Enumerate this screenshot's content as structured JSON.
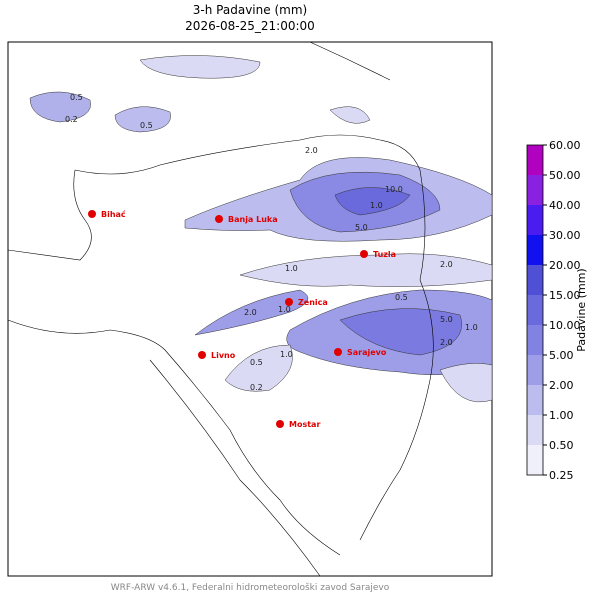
{
  "header": {
    "title": "3-h Padavine (mm)",
    "subtitle": "2026-08-25_21:00:00"
  },
  "map": {
    "cities": [
      "Bihać",
      "Banja Luka",
      "Tuzla",
      "Zenica",
      "Livno",
      "Sarajevo",
      "Mostar"
    ],
    "contour_labels": [
      "0.5",
      "0.2",
      "0.5",
      "2.0",
      "1.0",
      "10.0",
      "5.0",
      "1.0",
      "2.0",
      "0.5",
      "2.0",
      "1.0",
      "5.0",
      "2.0",
      "1.0",
      "0.5",
      "1.0",
      "0.2"
    ]
  },
  "colorbar": {
    "label": "Padavine (mm)",
    "ticks": [
      {
        "value": 0.25,
        "label": "0.25"
      },
      {
        "value": 0.5,
        "label": "0.50"
      },
      {
        "value": 1,
        "label": "1.00"
      },
      {
        "value": 2,
        "label": "2.00"
      },
      {
        "value": 5,
        "label": "5.00"
      },
      {
        "value": 10,
        "label": "10.00"
      },
      {
        "value": 15,
        "label": "15.00"
      },
      {
        "value": 20,
        "label": "20.00"
      },
      {
        "value": 30,
        "label": "30.00"
      },
      {
        "value": 40,
        "label": "40.00"
      },
      {
        "value": 50,
        "label": "50.00"
      },
      {
        "value": 60,
        "label": "60.00"
      }
    ],
    "colors": [
      "#f0f0fb",
      "#dadaf4",
      "#bcbcee",
      "#9e9ee8",
      "#8282e2",
      "#6a6adc",
      "#5050d6",
      "#1010f0",
      "#4a1cf0",
      "#8a20e0",
      "#b000c0"
    ]
  },
  "footer": "WRF-ARW v4.6.1, Federalni hidrometeorološki zavod Sarajevo"
}
